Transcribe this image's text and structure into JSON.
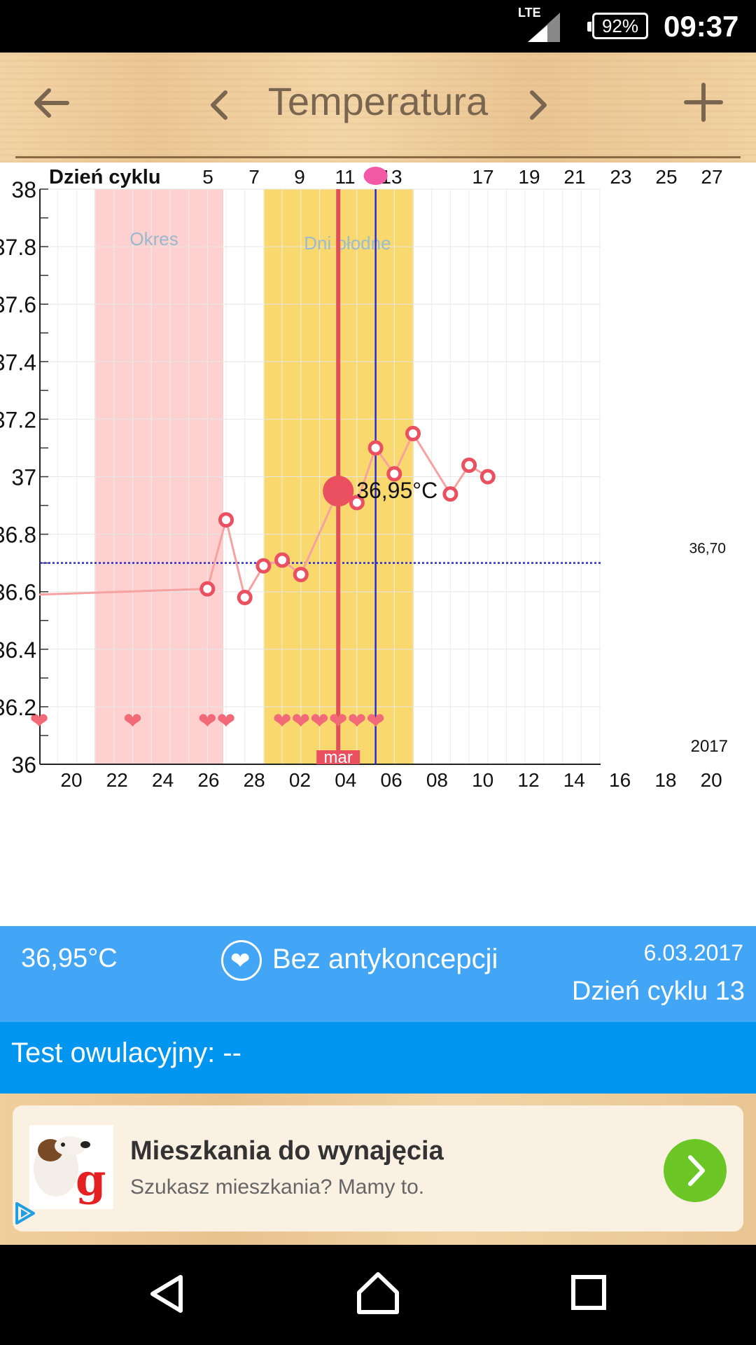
{
  "status_bar": {
    "network": "LTE",
    "battery": "92%",
    "time": "09:37"
  },
  "toolbar": {
    "title": "Temperatura",
    "back_icon": "arrow-left-icon",
    "prev_icon": "chevron-left-icon",
    "next_icon": "chevron-right-icon",
    "add_icon": "plus-icon"
  },
  "chart_data": {
    "type": "line",
    "top_axis_label": "Dzień cyklu",
    "cycle_ticks": [
      "5",
      "7",
      "9",
      "11",
      "13",
      "17",
      "19",
      "21",
      "23",
      "25",
      "27"
    ],
    "y_ticks": [
      "38",
      "37.8",
      "37.6",
      "37.4",
      "37.2",
      "37",
      "36.8",
      "36.6",
      "36.4",
      "36.2",
      "36"
    ],
    "ylim": [
      36,
      38
    ],
    "x_ticks": [
      "20",
      "22",
      "24",
      "26",
      "28",
      "02",
      "04",
      "06",
      "08",
      "10",
      "12",
      "14",
      "16",
      "18",
      "20"
    ],
    "month_label": "mar",
    "year_label": "2017",
    "period_label": "Okres",
    "fertile_label": "Dni płodne",
    "coverline": {
      "value": 36.7,
      "label": "36,70"
    },
    "selected": {
      "day": 16,
      "value": 36.95,
      "label": "36,95°C"
    },
    "ovulation_day": 18,
    "series": [
      {
        "values": [
          {
            "day": 0,
            "temp": 36.59
          },
          {
            "day": 9,
            "temp": 36.61
          },
          {
            "day": 10,
            "temp": 36.85
          },
          {
            "day": 11,
            "temp": 36.58
          },
          {
            "day": 12,
            "temp": 36.69
          },
          {
            "day": 13,
            "temp": 36.71
          },
          {
            "day": 14,
            "temp": 36.66
          },
          {
            "day": 16,
            "temp": 36.95
          },
          {
            "day": 17,
            "temp": 36.91
          },
          {
            "day": 18,
            "temp": 37.1
          },
          {
            "day": 19,
            "temp": 37.01
          },
          {
            "day": 20,
            "temp": 37.15
          },
          {
            "day": 22,
            "temp": 36.94
          },
          {
            "day": 23,
            "temp": 37.04
          },
          {
            "day": 24,
            "temp": 37.0
          }
        ]
      }
    ],
    "intercourse_days": [
      0,
      5,
      9,
      10,
      13,
      14,
      15,
      16,
      17,
      18
    ],
    "period_range": [
      3,
      8
    ],
    "fertile_range": [
      12,
      19
    ],
    "colors": {
      "line": "#f7a1a1",
      "marker": "#ea5060",
      "period": "#ffd0d0",
      "fertile": "#f9d86e",
      "today_line": "#e0505a",
      "ovulation_line": "#2a2ad0",
      "coverline": "#2a2ad0"
    }
  },
  "info": {
    "temperature": "36,95°C",
    "contraception": "Bez antykoncepcji",
    "date": "6.03.2017",
    "cycle_day": "Dzień cyklu 13",
    "heart_icon": "heart-icon"
  },
  "ovulation_test": {
    "label": "Test owulacyjny: --"
  },
  "ad": {
    "title": "Mieszkania do wynajęcia",
    "subtitle": "Szukasz mieszkania? Mamy to.",
    "logo_letter": "g"
  },
  "colors": {
    "info_bg": "#42a5f5",
    "ovulation_bg": "#0095ee",
    "ad_button": "#6cc726"
  }
}
